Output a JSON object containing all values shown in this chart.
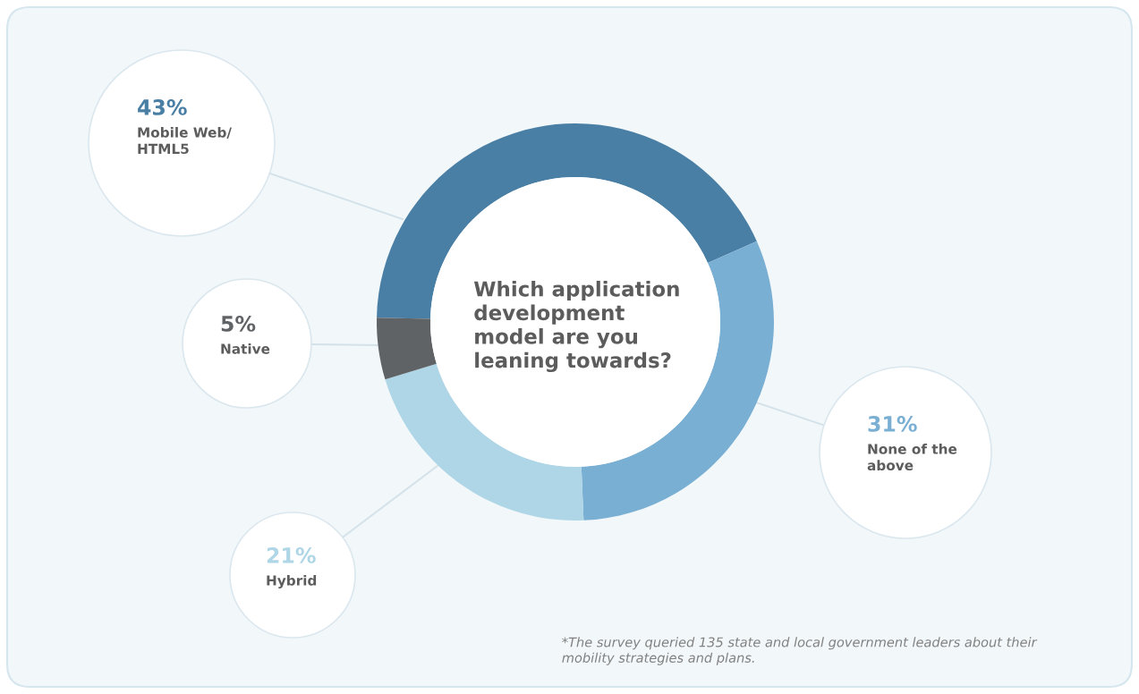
{
  "chart_data": {
    "type": "donut",
    "title": "Which application development model are you leaning towards?",
    "categories": [
      "Mobile Web/\nHTML5",
      "None of the\nabove",
      "Hybrid",
      "Native"
    ],
    "values": [
      43,
      31,
      21,
      5
    ],
    "value_labels": [
      "43%",
      "31%",
      "21%",
      "5%"
    ],
    "colors": [
      "#4a7fa5",
      "#7aafd4",
      "#aed6e6",
      "#606366"
    ],
    "legend": false,
    "annotations": [
      "*The survey queried 135 state and local government leaders about their mobility strategies and plans."
    ]
  }
}
